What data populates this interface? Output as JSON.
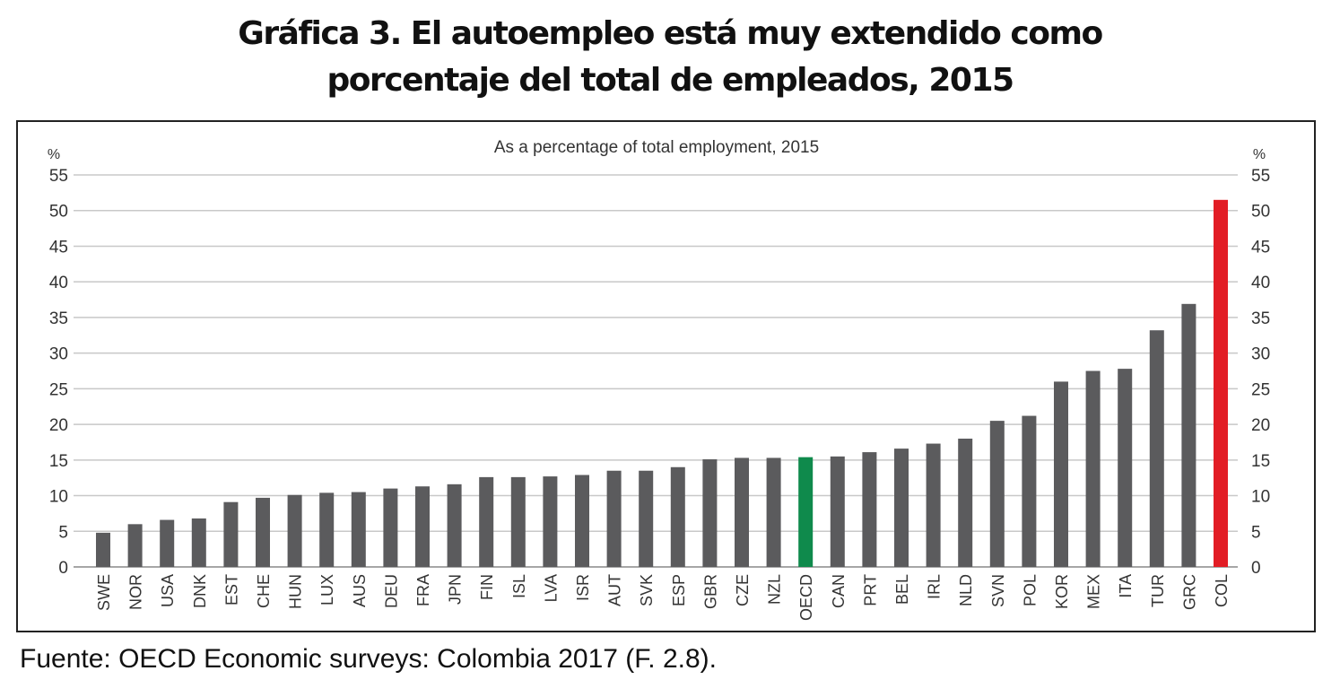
{
  "title_line1": "Gráfica 3. El autoempleo está muy extendido como",
  "title_line2": "porcentaje del total de empleados, 2015",
  "source": "Fuente: OECD Economic surveys: Colombia 2017 (F. 2.8).",
  "chart_data": {
    "type": "bar",
    "subtitle": "As a percentage of total employment, 2015",
    "y_unit": "%",
    "ylim": [
      0,
      55
    ],
    "yticks": [
      0,
      5,
      10,
      15,
      20,
      25,
      30,
      35,
      40,
      45,
      50,
      55
    ],
    "grid": true,
    "categories": [
      "SWE",
      "NOR",
      "USA",
      "DNK",
      "EST",
      "CHE",
      "HUN",
      "LUX",
      "AUS",
      "DEU",
      "FRA",
      "JPN",
      "FIN",
      "ISL",
      "LVA",
      "ISR",
      "AUT",
      "SVK",
      "ESP",
      "GBR",
      "CZE",
      "NZL",
      "OECD",
      "CAN",
      "PRT",
      "BEL",
      "IRL",
      "NLD",
      "SVN",
      "POL",
      "KOR",
      "MEX",
      "ITA",
      "TUR",
      "GRC",
      "COL"
    ],
    "values": [
      4.8,
      6.0,
      6.6,
      6.8,
      9.1,
      9.7,
      10.1,
      10.4,
      10.5,
      11.0,
      11.3,
      11.6,
      12.6,
      12.6,
      12.7,
      12.9,
      13.5,
      13.5,
      14.0,
      15.1,
      15.3,
      15.3,
      15.4,
      15.5,
      16.1,
      16.6,
      17.3,
      18.0,
      20.5,
      21.2,
      26.0,
      27.5,
      27.8,
      33.2,
      36.9,
      51.5
    ],
    "colors": {
      "default": "#5b5b5d",
      "OECD": "#0f8a4c",
      "COL": "#e21d25"
    }
  }
}
